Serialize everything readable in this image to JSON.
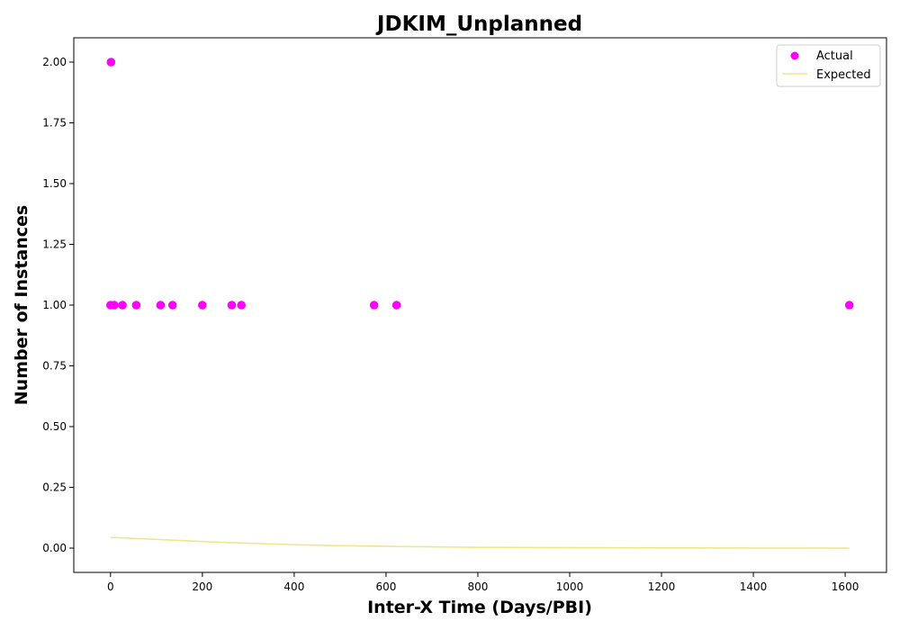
{
  "chart_data": {
    "type": "scatter",
    "title": "JDKIM_Unplanned",
    "xlabel": "Inter-X Time (Days/PBI)",
    "ylabel": "Number of Instances",
    "xlim": [
      -80,
      1690
    ],
    "ylim": [
      -0.1,
      2.1
    ],
    "xticks": [
      0,
      200,
      400,
      600,
      800,
      1000,
      1200,
      1400,
      1600
    ],
    "yticks": [
      0.0,
      0.25,
      0.5,
      0.75,
      1.0,
      1.25,
      1.5,
      1.75,
      2.0
    ],
    "xtick_labels": [
      "0",
      "200",
      "400",
      "600",
      "800",
      "1000",
      "1200",
      "1400",
      "1600"
    ],
    "ytick_labels": [
      "0.00",
      "0.25",
      "0.50",
      "0.75",
      "1.00",
      "1.25",
      "1.50",
      "1.75",
      "2.00"
    ],
    "grid": false,
    "legend_position": "top-right",
    "series": [
      {
        "name": "Actual",
        "kind": "scatter",
        "color": "#ff00ff",
        "points": [
          {
            "x": 1,
            "y": 2
          },
          {
            "x": 0,
            "y": 1
          },
          {
            "x": 8,
            "y": 1
          },
          {
            "x": 26,
            "y": 1
          },
          {
            "x": 56,
            "y": 1
          },
          {
            "x": 109,
            "y": 1
          },
          {
            "x": 135,
            "y": 1
          },
          {
            "x": 200,
            "y": 1
          },
          {
            "x": 264,
            "y": 1
          },
          {
            "x": 285,
            "y": 1
          },
          {
            "x": 574,
            "y": 1
          },
          {
            "x": 623,
            "y": 1
          },
          {
            "x": 1609,
            "y": 1
          }
        ]
      },
      {
        "name": "Expected",
        "kind": "line",
        "color": "#f0e68c",
        "points": [
          {
            "x": 0,
            "y": 0.044
          },
          {
            "x": 100,
            "y": 0.036
          },
          {
            "x": 200,
            "y": 0.027
          },
          {
            "x": 300,
            "y": 0.02
          },
          {
            "x": 400,
            "y": 0.014
          },
          {
            "x": 500,
            "y": 0.01
          },
          {
            "x": 600,
            "y": 0.007
          },
          {
            "x": 700,
            "y": 0.005
          },
          {
            "x": 800,
            "y": 0.003
          },
          {
            "x": 1000,
            "y": 0.0015
          },
          {
            "x": 1200,
            "y": 0.0007
          },
          {
            "x": 1400,
            "y": 0.0003
          },
          {
            "x": 1609,
            "y": 0.0001
          }
        ]
      }
    ]
  }
}
